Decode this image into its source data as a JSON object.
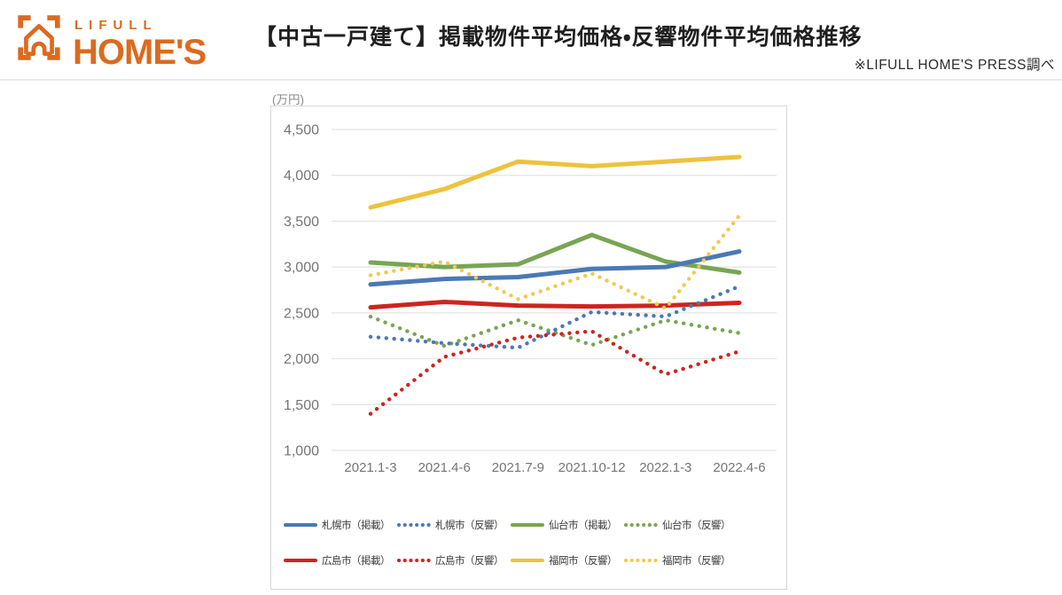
{
  "header": {
    "logo": {
      "brand_top": "LIFULL",
      "brand_bottom": "HOME'S"
    },
    "title": "【中古一戸建て】掲載物件平均価格・反響物件平均価格推移",
    "note": "※LIFULL HOME'S PRESS調べ"
  },
  "colors": {
    "brand_orange": "#dc6a1e",
    "sapporo_blue": "#4a79b4",
    "sendai_green": "#78a553",
    "hiroshima_red": "#cc2520",
    "fukuoka_yellow": "#eec23c",
    "fukuoka_yellow_dotted": "#f0c94f",
    "grid_gray": "#e3e3e3",
    "axis_text_gray": "#757575"
  },
  "chart_data": {
    "type": "line",
    "title": "【中古一戸建て】掲載物件平均価格・反響物件平均価格推移",
    "unit_label": "(万円)",
    "xlabel": "",
    "ylabel": "万円",
    "categories": [
      "2021.1-3",
      "2021.4-6",
      "2021.7-9",
      "2021.10-12",
      "2022.1-3",
      "2022.4-6"
    ],
    "ylim": [
      1000,
      4500
    ],
    "ytick_step": 500,
    "ytick_labels": [
      "1,000",
      "1,500",
      "2,000",
      "2,500",
      "3,000",
      "3,500",
      "4,000",
      "4,500"
    ],
    "grid": true,
    "legend_position": "bottom",
    "series": [
      {
        "name": "札幌市（掲載）",
        "style": "solid",
        "color": "#4a79b4",
        "values": [
          2810,
          2870,
          2890,
          2980,
          3000,
          3170
        ]
      },
      {
        "name": "札幌市（反響）",
        "style": "dotted",
        "color": "#4a79b4",
        "values": [
          2240,
          2170,
          2120,
          2510,
          2460,
          2790
        ]
      },
      {
        "name": "仙台市（掲載）",
        "style": "solid",
        "color": "#78a553",
        "values": [
          3050,
          3000,
          3030,
          3350,
          3060,
          2940
        ]
      },
      {
        "name": "仙台市（反響）",
        "style": "dotted",
        "color": "#78a553",
        "values": [
          2460,
          2140,
          2420,
          2150,
          2420,
          2280
        ]
      },
      {
        "name": "広島市（掲載）",
        "style": "solid",
        "color": "#cc2520",
        "values": [
          2560,
          2620,
          2580,
          2570,
          2580,
          2610
        ]
      },
      {
        "name": "広島市（反響）",
        "style": "dotted",
        "color": "#cc2520",
        "values": [
          1400,
          2020,
          2230,
          2300,
          1830,
          2080
        ]
      },
      {
        "name": "福岡市（反響）",
        "style": "solid",
        "color": "#eec23c",
        "values": [
          3650,
          3850,
          4150,
          4100,
          4150,
          4200
        ]
      },
      {
        "name": "福岡市（反響）",
        "style": "dotted",
        "color": "#f0c94f",
        "values": [
          2910,
          3060,
          2650,
          2930,
          2550,
          3560
        ]
      }
    ]
  }
}
